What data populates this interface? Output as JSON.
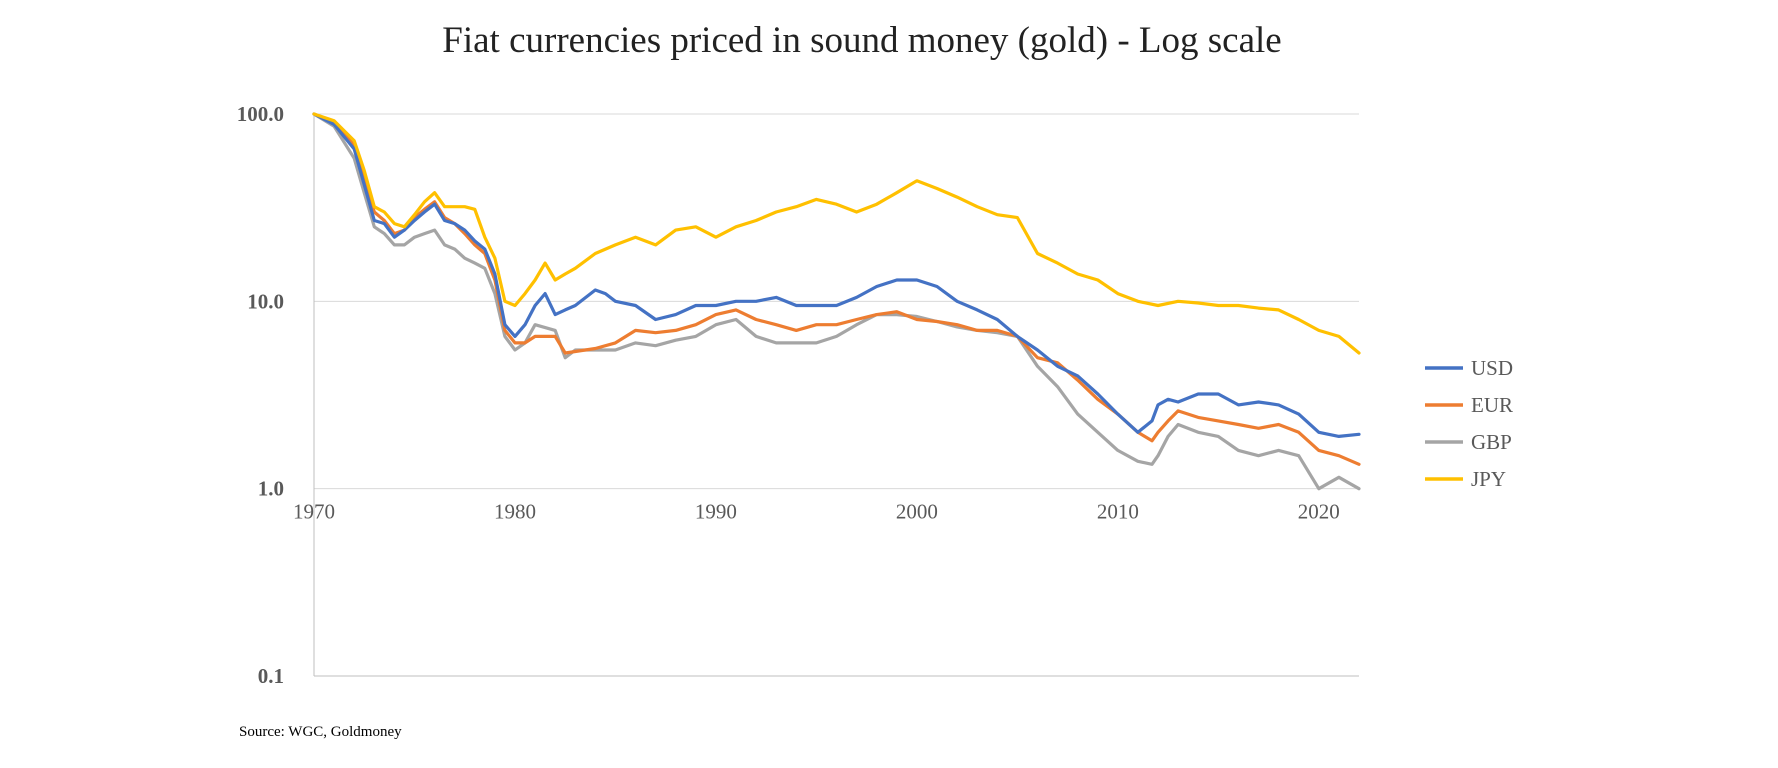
{
  "chart_data": {
    "type": "line",
    "title": "Fiat currencies priced in sound money (gold) - Log scale",
    "xlabel": "",
    "ylabel": "",
    "y_scale": "log",
    "ylim": [
      0.1,
      100
    ],
    "xlim": [
      1970,
      2022
    ],
    "y_ticks": [
      "100.0",
      "10.0",
      "1.0",
      "0.1"
    ],
    "x_ticks": [
      "1970",
      "1980",
      "1990",
      "2000",
      "2010",
      "2020"
    ],
    "grid": "horizontal",
    "legend_position": "right",
    "source": "Source: WGC, Goldmoney",
    "series": [
      {
        "name": "USD",
        "color": "#4472C4",
        "x": [
          1970,
          1971,
          1972,
          1972.5,
          1973,
          1973.5,
          1974,
          1974.5,
          1975,
          1975.5,
          1976,
          1976.5,
          1977,
          1977.5,
          1978,
          1978.5,
          1979,
          1979.5,
          1980,
          1980.5,
          1981,
          1981.5,
          1982,
          1982.5,
          1983,
          1984,
          1984.5,
          1985,
          1986,
          1987,
          1988,
          1989,
          1990,
          1991,
          1992,
          1993,
          1994,
          1995,
          1996,
          1997,
          1998,
          1999,
          2000,
          2001,
          2002,
          2003,
          2004,
          2005,
          2006,
          2007,
          2008,
          2009,
          2010,
          2011,
          2011.7,
          2012,
          2012.5,
          2013,
          2014,
          2015,
          2016,
          2017,
          2018,
          2019,
          2020,
          2021,
          2022
        ],
        "y": [
          100,
          88,
          65,
          42,
          27,
          26,
          22,
          24,
          27,
          30,
          33,
          27,
          26,
          24,
          21,
          19,
          14,
          7.5,
          6.5,
          7.5,
          9.5,
          11,
          8.5,
          9,
          9.5,
          11.5,
          11,
          10,
          9.5,
          8,
          8.5,
          9.5,
          9.5,
          10,
          10,
          10.5,
          9.5,
          9.5,
          9.5,
          10.5,
          12,
          13,
          13,
          12,
          10,
          9,
          8,
          6.5,
          5.5,
          4.5,
          4,
          3.2,
          2.5,
          2.0,
          2.3,
          2.8,
          3.0,
          2.9,
          3.2,
          3.2,
          2.8,
          2.9,
          2.8,
          2.5,
          2.0,
          1.9,
          1.95
        ]
      },
      {
        "name": "EUR",
        "color": "#ED7D31",
        "x": [
          1970,
          1971,
          1972,
          1972.5,
          1973,
          1973.5,
          1974,
          1974.5,
          1975,
          1975.5,
          1976,
          1976.5,
          1977,
          1977.5,
          1978,
          1978.5,
          1979,
          1979.5,
          1980,
          1980.5,
          1981,
          1982,
          1982.5,
          1983,
          1984,
          1985,
          1986,
          1987,
          1988,
          1989,
          1990,
          1991,
          1992,
          1993,
          1994,
          1995,
          1996,
          1997,
          1998,
          1999,
          2000,
          2001,
          2002,
          2003,
          2004,
          2005,
          2006,
          2007,
          2008,
          2009,
          2010,
          2011,
          2011.7,
          2012,
          2012.5,
          2013,
          2014,
          2015,
          2016,
          2017,
          2018,
          2019,
          2020,
          2021,
          2022
        ],
        "y": [
          100,
          90,
          68,
          45,
          30,
          27,
          23,
          24,
          28,
          31,
          34,
          28,
          26,
          23,
          20,
          18,
          13,
          7,
          6.0,
          6.0,
          6.5,
          6.5,
          5.3,
          5.4,
          5.6,
          6.0,
          7.0,
          6.8,
          7.0,
          7.5,
          8.5,
          9.0,
          8.0,
          7.5,
          7.0,
          7.5,
          7.5,
          8.0,
          8.5,
          8.8,
          8.0,
          7.8,
          7.5,
          7.0,
          7.0,
          6.5,
          5.0,
          4.7,
          3.8,
          3.0,
          2.5,
          2.0,
          1.8,
          2.0,
          2.3,
          2.6,
          2.4,
          2.3,
          2.2,
          2.1,
          2.2,
          2.0,
          1.6,
          1.5,
          1.35
        ]
      },
      {
        "name": "GBP",
        "color": "#A5A5A5",
        "x": [
          1970,
          1971,
          1972,
          1972.5,
          1973,
          1973.5,
          1974,
          1974.5,
          1975,
          1975.5,
          1976,
          1976.5,
          1977,
          1977.5,
          1978,
          1978.5,
          1979,
          1979.5,
          1980,
          1980.5,
          1981,
          1982,
          1982.5,
          1983,
          1984,
          1985,
          1986,
          1987,
          1988,
          1989,
          1990,
          1991,
          1992,
          1993,
          1994,
          1995,
          1996,
          1997,
          1998,
          1999,
          2000,
          2001,
          2002,
          2003,
          2004,
          2005,
          2006,
          2007,
          2008,
          2009,
          2010,
          2011,
          2011.7,
          2012,
          2012.5,
          2013,
          2014,
          2015,
          2016,
          2017,
          2018,
          2019,
          2020,
          2021,
          2022
        ],
        "y": [
          100,
          86,
          58,
          38,
          25,
          23,
          20,
          20,
          22,
          23,
          24,
          20,
          19,
          17,
          16,
          15,
          11,
          6.5,
          5.5,
          6.0,
          7.5,
          7.0,
          5.0,
          5.5,
          5.5,
          5.5,
          6.0,
          5.8,
          6.2,
          6.5,
          7.5,
          8.0,
          6.5,
          6.0,
          6.0,
          6.0,
          6.5,
          7.5,
          8.5,
          8.5,
          8.3,
          7.8,
          7.3,
          7.0,
          6.8,
          6.5,
          4.5,
          3.5,
          2.5,
          2.0,
          1.6,
          1.4,
          1.35,
          1.5,
          1.9,
          2.2,
          2.0,
          1.9,
          1.6,
          1.5,
          1.6,
          1.5,
          1.0,
          1.15,
          1.0
        ]
      },
      {
        "name": "JPY",
        "color": "#FFC000",
        "x": [
          1970,
          1971,
          1972,
          1972.5,
          1973,
          1973.5,
          1974,
          1974.5,
          1975,
          1975.5,
          1976,
          1976.5,
          1977,
          1977.5,
          1978,
          1978.5,
          1979,
          1979.5,
          1980,
          1980.5,
          1981,
          1981.5,
          1982,
          1982.5,
          1983,
          1984,
          1985,
          1986,
          1987,
          1988,
          1989,
          1990,
          1991,
          1992,
          1993,
          1994,
          1995,
          1996,
          1997,
          1998,
          1999,
          2000,
          2001,
          2002,
          2003,
          2004,
          2005,
          2006,
          2007,
          2008,
          2009,
          2010,
          2011,
          2012,
          2013,
          2014,
          2015,
          2016,
          2017,
          2018,
          2019,
          2020,
          2021,
          2022
        ],
        "y": [
          100,
          92,
          72,
          50,
          32,
          30,
          26,
          25,
          29,
          34,
          38,
          32,
          32,
          32,
          31,
          22,
          17,
          10,
          9.5,
          11,
          13,
          16,
          13,
          14,
          15,
          18,
          20,
          22,
          20,
          24,
          25,
          22,
          25,
          27,
          30,
          32,
          35,
          33,
          30,
          33,
          38,
          44,
          40,
          36,
          32,
          29,
          28,
          18,
          16,
          14,
          13,
          11,
          10,
          9.5,
          10.0,
          9.8,
          9.5,
          9.5,
          9.2,
          9.0,
          8.0,
          7.0,
          6.5,
          5.3
        ]
      }
    ]
  }
}
